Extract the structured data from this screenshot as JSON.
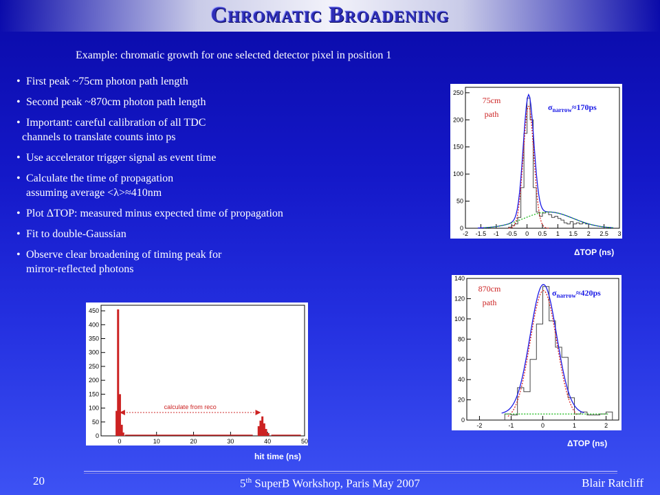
{
  "slide": {
    "title": "Chromatic Broadening",
    "subtitle": "Example: chromatic growth for one selected detector pixel in position 1",
    "bullets": [
      {
        "line1": "First peak ~75cm photon path length",
        "line2": ""
      },
      {
        "line1": "Second peak ~870cm photon path length",
        "line2": ""
      },
      {
        "line1": "Important: careful calibration of all TDC",
        "line2": "channels to translate counts into ps"
      },
      {
        "line1": "Use accelerator trigger signal as event time",
        "line2": ""
      },
      {
        "line1": "Calculate the time of propagation",
        "line2": "assuming average <λ>≈410nm"
      },
      {
        "line1": "Plot ΔTOP: measured minus expected time of propagation",
        "line2": ""
      },
      {
        "line1": "Fit to double-Gaussian",
        "line2": ""
      },
      {
        "line1": "Observe clear broadening of timing peak for",
        "line2": "mirror-reflected photons"
      }
    ],
    "footer": {
      "page": "20",
      "event_prefix": "5",
      "event_sup": "th",
      "event_rest": " SuperB Workshop, Paris  May 2007",
      "author": "Blair Ratcliff"
    }
  },
  "colors": {
    "accent_red": "#cc2222",
    "fit_blue": "#1a1ae6",
    "fit_red": "#dd2222",
    "fit_green": "#22bb22"
  },
  "chart_data": [
    {
      "type": "bar",
      "title": "",
      "xlabel": "ΔTOP (ns)",
      "ylabel": "",
      "annotation_path": [
        "75cm",
        "path"
      ],
      "annotation_sigma": "σ",
      "annotation_sigma_sub": "narrow",
      "annotation_sigma_val": "≈170ps",
      "xlim": [
        -2,
        3
      ],
      "ylim": [
        0,
        260
      ],
      "xticks": [
        "-2",
        "-1.5",
        "-1",
        "-0.5",
        "0",
        "0.5",
        "1",
        "1.5",
        "2",
        "2.5",
        "3"
      ],
      "yticks": [
        "0",
        "50",
        "100",
        "150",
        "200",
        "250"
      ],
      "bin_width": 0.1,
      "x_start": -0.6,
      "values": [
        2,
        5,
        8,
        20,
        75,
        175,
        240,
        200,
        75,
        30,
        22,
        28,
        30,
        25,
        20,
        22,
        18,
        15,
        10,
        8,
        12,
        8,
        10,
        8,
        10,
        8
      ]
    },
    {
      "type": "bar",
      "title": "",
      "xlabel": "ΔTOP (ns)",
      "ylabel": "",
      "annotation_path": [
        "870cm",
        "path"
      ],
      "annotation_sigma": "σ",
      "annotation_sigma_sub": "narrow",
      "annotation_sigma_val": "≈420ps",
      "xlim": [
        -2.4,
        2.4
      ],
      "ylim": [
        0,
        140
      ],
      "xticks": [
        "-2",
        "-1",
        "0",
        "1",
        "2"
      ],
      "yticks": [
        "0",
        "20",
        "40",
        "60",
        "80",
        "100",
        "120",
        "140"
      ],
      "bin_width": 0.2,
      "x_start": -1.2,
      "values": [
        6,
        5,
        32,
        28,
        60,
        95,
        132,
        98,
        72,
        62,
        22,
        6,
        8,
        5,
        5,
        6,
        8
      ]
    },
    {
      "type": "bar",
      "title": "",
      "xlabel": "hit time (ns)",
      "ylabel": "",
      "annotation": "calculate from reco",
      "xlim": [
        -5,
        50
      ],
      "ylim": [
        0,
        470
      ],
      "xticks": [
        "0",
        "10",
        "20",
        "30",
        "40",
        "50"
      ],
      "yticks": [
        "0",
        "50",
        "100",
        "150",
        "200",
        "250",
        "300",
        "350",
        "400",
        "450"
      ],
      "peaks": [
        {
          "x": -0.4,
          "value": 455
        },
        {
          "x": -0.8,
          "value": 90
        },
        {
          "x": 0.1,
          "value": 150
        },
        {
          "x": 0.6,
          "value": 40
        },
        {
          "x": 1.0,
          "value": 12
        },
        {
          "x": 37.6,
          "value": 35
        },
        {
          "x": 38.1,
          "value": 55
        },
        {
          "x": 38.6,
          "value": 70
        },
        {
          "x": 39.1,
          "value": 45
        },
        {
          "x": 39.6,
          "value": 25
        },
        {
          "x": 40.2,
          "value": 10
        }
      ]
    }
  ]
}
